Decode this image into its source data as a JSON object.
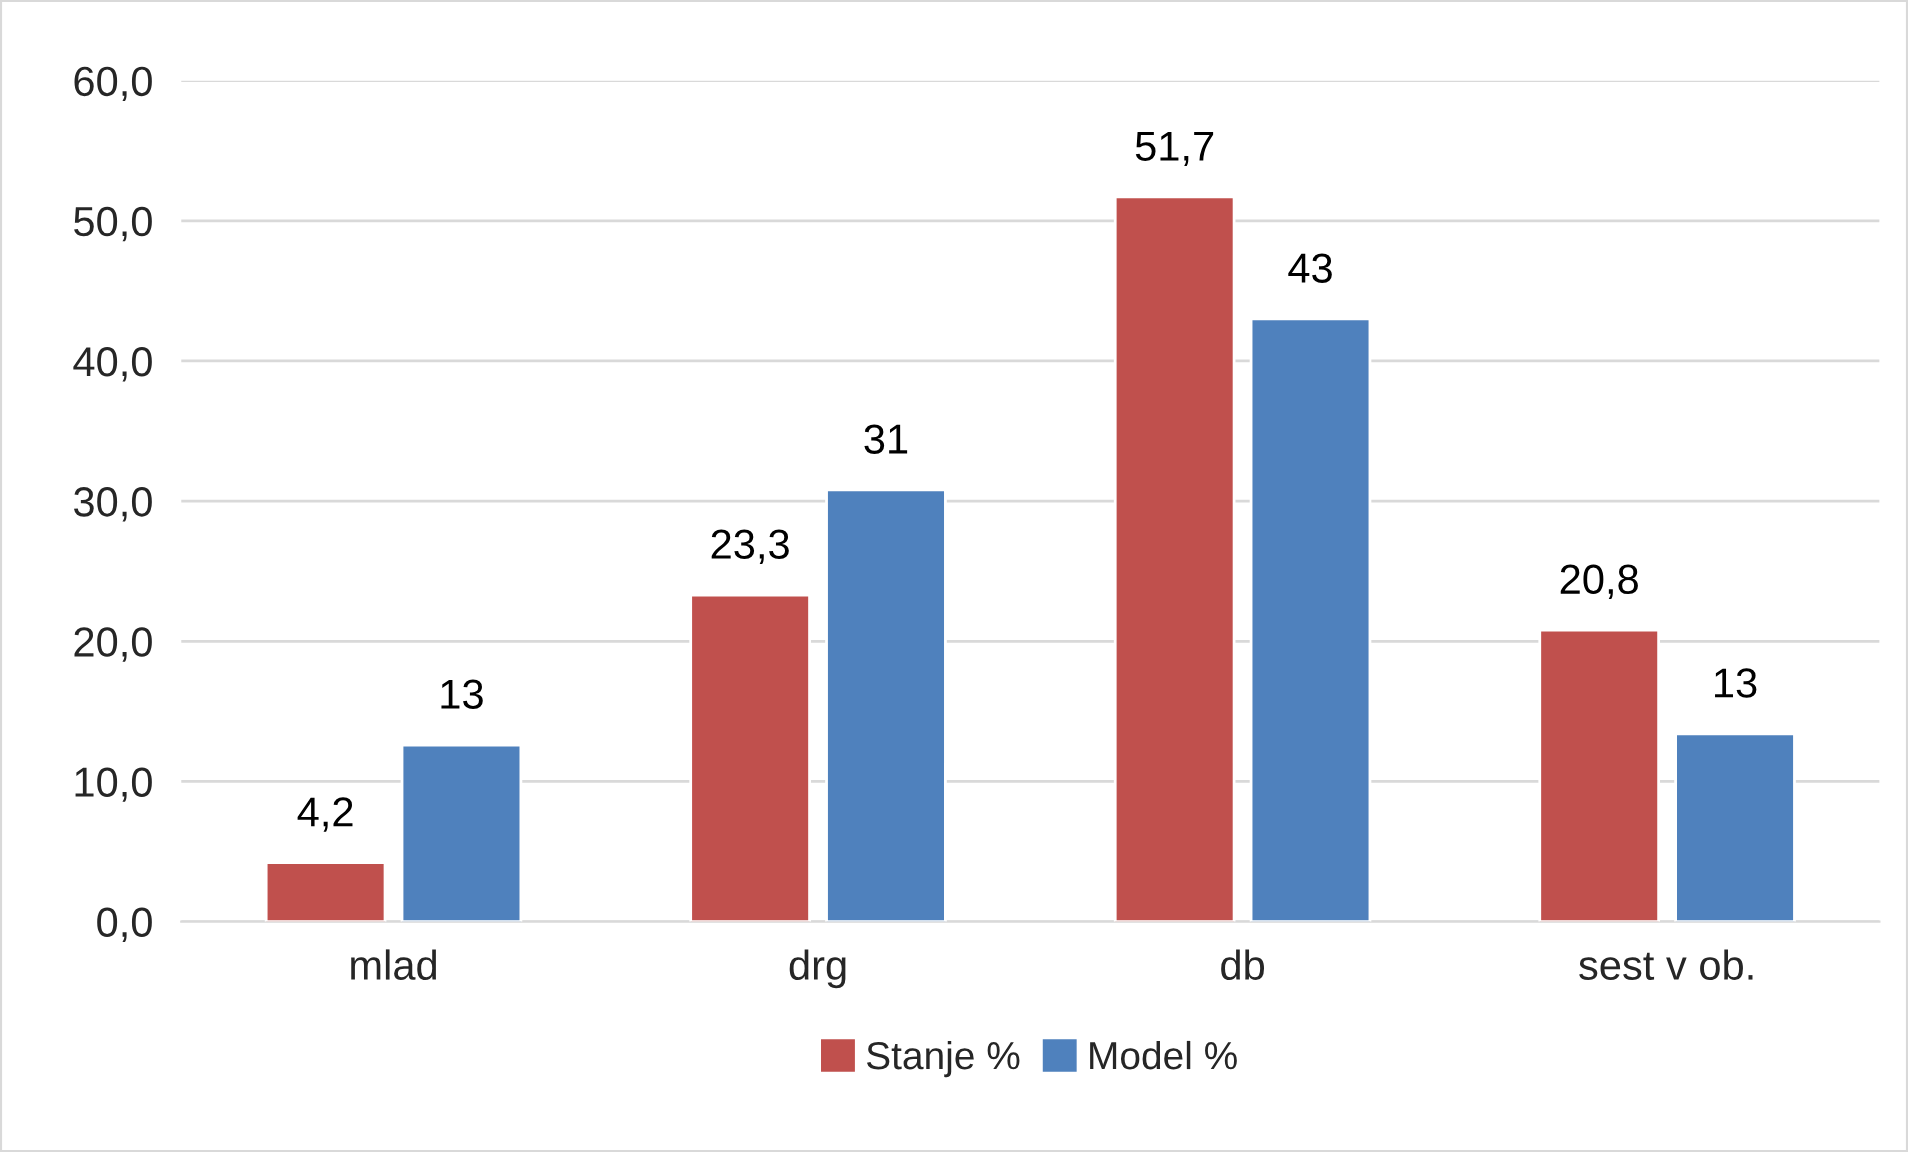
{
  "chart_data": {
    "type": "bar",
    "categories": [
      "mlad",
      "drg",
      "db",
      "sest v ob."
    ],
    "series": [
      {
        "name": "Stanje %",
        "color": "#c0504d",
        "values": [
          4.2,
          23.3,
          51.7,
          20.8
        ],
        "value_labels": [
          "4,2",
          "23,3",
          "51,7",
          "20,8"
        ]
      },
      {
        "name": "Model %",
        "color": "#4f81bd",
        "values": [
          12.6,
          30.8,
          43.0,
          13.4
        ],
        "value_labels": [
          "13",
          "31",
          "43",
          "13"
        ]
      }
    ],
    "ylim": [
      0,
      60
    ],
    "yticks": [
      {
        "value": 0,
        "label": "0,0"
      },
      {
        "value": 10,
        "label": "10,0"
      },
      {
        "value": 20,
        "label": "20,0"
      },
      {
        "value": 30,
        "label": "30,0"
      },
      {
        "value": 40,
        "label": "40,0"
      },
      {
        "value": 50,
        "label": "50,0"
      },
      {
        "value": 60,
        "label": "60,0"
      }
    ],
    "grid": "y",
    "legend": "bottom"
  }
}
